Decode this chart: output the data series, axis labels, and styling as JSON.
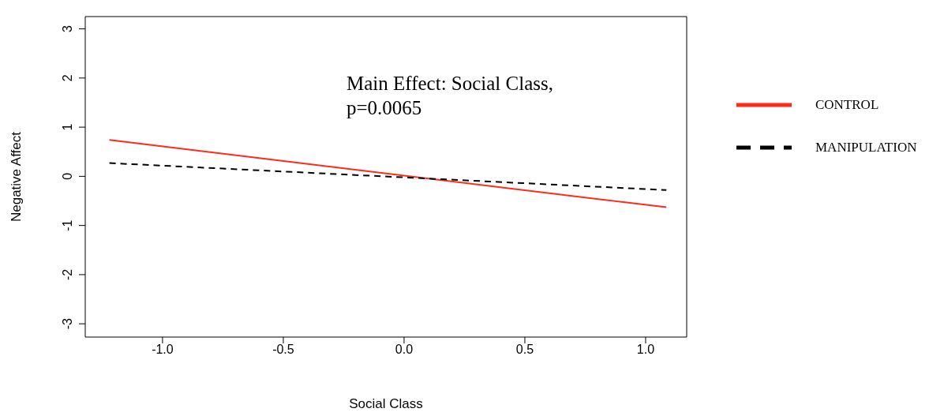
{
  "chart_data": {
    "type": "line",
    "xlabel": "Social Class",
    "ylabel": "Negative Affect",
    "annotations": [
      "Main Effect: Social Class,\np=0.0065"
    ],
    "x": [
      -1.22,
      1.086
    ],
    "xlim": [
      -1.32,
      1.17
    ],
    "xticks": [
      {
        "value": -1,
        "label": "-1.0"
      },
      {
        "value": -0.5,
        "label": "-0.5"
      },
      {
        "value": 0,
        "label": "0.0"
      },
      {
        "value": 0.5,
        "label": "0.5"
      },
      {
        "value": 1,
        "label": "1.0"
      }
    ],
    "ylim": [
      -3.27,
      3.25
    ],
    "yticks": [
      -3,
      -2,
      -1,
      0,
      1,
      2,
      3
    ],
    "grid": false,
    "legend": "right",
    "marker": "none",
    "series": [
      {
        "name": "CONTROL",
        "color": "#ff2a1a",
        "line_style": "solid",
        "values": [
          0.74,
          -0.63
        ]
      },
      {
        "name": "MANIPULATION",
        "color": "#000000",
        "line_style": "dashed",
        "values": [
          0.27,
          -0.28
        ]
      }
    ]
  }
}
